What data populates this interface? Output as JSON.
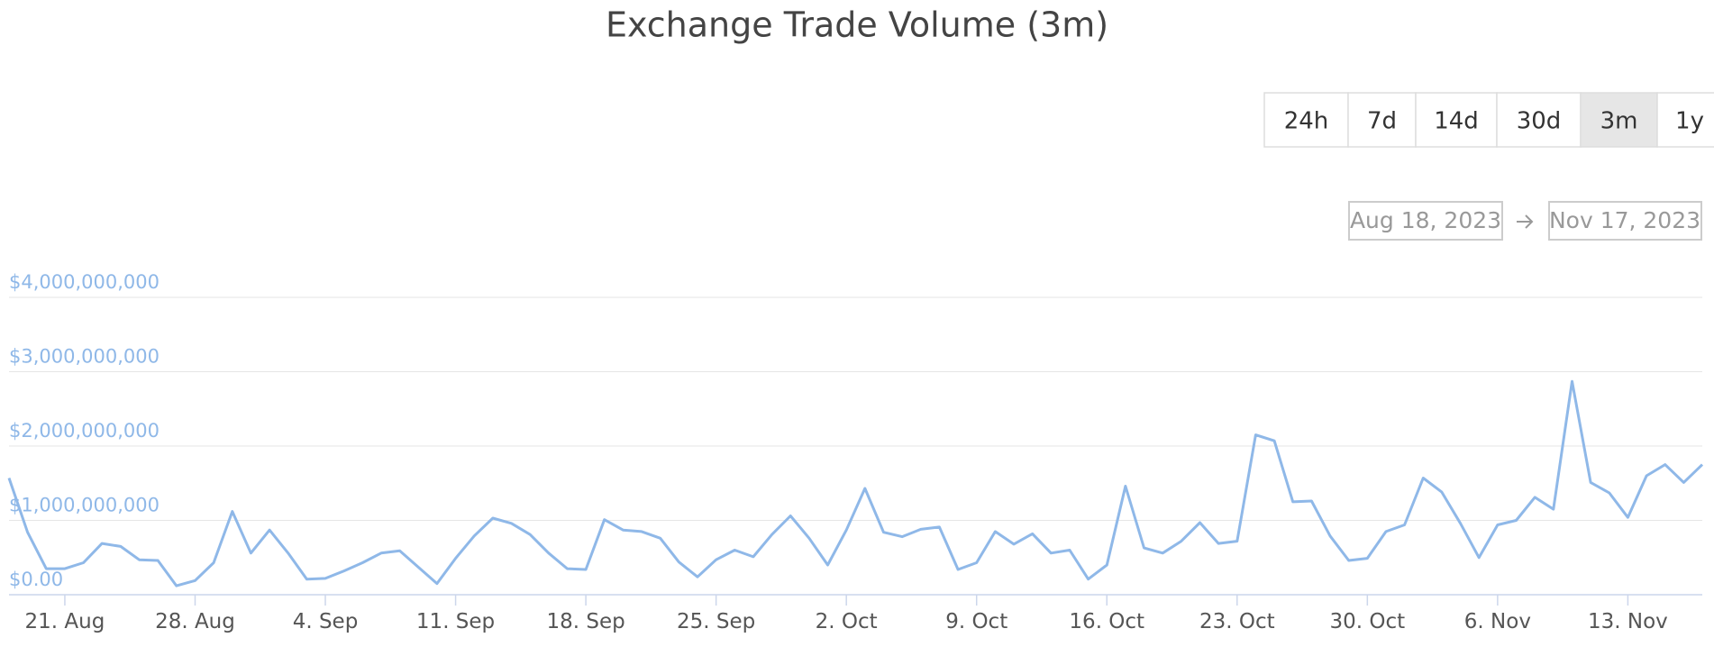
{
  "chart_data": {
    "type": "line",
    "title": "Exchange Trade Volume (3m)",
    "range_buttons": [
      {
        "label": "24h",
        "selected": false
      },
      {
        "label": "7d",
        "selected": false
      },
      {
        "label": "14d",
        "selected": false
      },
      {
        "label": "30d",
        "selected": false
      },
      {
        "label": "3m",
        "selected": true
      },
      {
        "label": "1y",
        "selected": false
      }
    ],
    "date_range": {
      "start": "Aug 18, 2023",
      "end": "Nov 17, 2023"
    },
    "color": "#8fb8e8",
    "x": [
      "2023-08-18",
      "2023-08-19",
      "2023-08-20",
      "2023-08-21",
      "2023-08-22",
      "2023-08-23",
      "2023-08-24",
      "2023-08-25",
      "2023-08-26",
      "2023-08-27",
      "2023-08-28",
      "2023-08-29",
      "2023-08-30",
      "2023-08-31",
      "2023-09-01",
      "2023-09-02",
      "2023-09-03",
      "2023-09-04",
      "2023-09-05",
      "2023-09-06",
      "2023-09-07",
      "2023-09-08",
      "2023-09-09",
      "2023-09-10",
      "2023-09-11",
      "2023-09-12",
      "2023-09-13",
      "2023-09-14",
      "2023-09-15",
      "2023-09-16",
      "2023-09-17",
      "2023-09-18",
      "2023-09-19",
      "2023-09-20",
      "2023-09-21",
      "2023-09-22",
      "2023-09-23",
      "2023-09-24",
      "2023-09-25",
      "2023-09-26",
      "2023-09-27",
      "2023-09-28",
      "2023-09-29",
      "2023-09-30",
      "2023-10-01",
      "2023-10-02",
      "2023-10-03",
      "2023-10-04",
      "2023-10-05",
      "2023-10-06",
      "2023-10-07",
      "2023-10-08",
      "2023-10-09",
      "2023-10-10",
      "2023-10-11",
      "2023-10-12",
      "2023-10-13",
      "2023-10-14",
      "2023-10-15",
      "2023-10-16",
      "2023-10-17",
      "2023-10-18",
      "2023-10-19",
      "2023-10-20",
      "2023-10-21",
      "2023-10-22",
      "2023-10-23",
      "2023-10-24",
      "2023-10-25",
      "2023-10-26",
      "2023-10-27",
      "2023-10-28",
      "2023-10-29",
      "2023-10-30",
      "2023-10-31",
      "2023-11-01",
      "2023-11-02",
      "2023-11-03",
      "2023-11-04",
      "2023-11-05",
      "2023-11-06",
      "2023-11-07",
      "2023-11-08",
      "2023-11-09",
      "2023-11-10",
      "2023-11-11",
      "2023-11-12",
      "2023-11-13",
      "2023-11-14",
      "2023-11-15",
      "2023-11-16",
      "2023-11-17"
    ],
    "values": [
      1570000000,
      840000000,
      350000000,
      350000000,
      430000000,
      690000000,
      650000000,
      470000000,
      460000000,
      120000000,
      190000000,
      430000000,
      1120000000,
      560000000,
      870000000,
      560000000,
      210000000,
      220000000,
      320000000,
      430000000,
      560000000,
      590000000,
      370000000,
      150000000,
      490000000,
      790000000,
      1030000000,
      960000000,
      810000000,
      560000000,
      350000000,
      340000000,
      1010000000,
      870000000,
      850000000,
      760000000,
      440000000,
      240000000,
      470000000,
      600000000,
      510000000,
      810000000,
      1060000000,
      760000000,
      400000000,
      870000000,
      1430000000,
      840000000,
      780000000,
      880000000,
      910000000,
      340000000,
      430000000,
      850000000,
      680000000,
      820000000,
      560000000,
      600000000,
      210000000,
      400000000,
      1460000000,
      630000000,
      560000000,
      720000000,
      970000000,
      690000000,
      720000000,
      2150000000,
      2070000000,
      1250000000,
      1260000000,
      790000000,
      460000000,
      490000000,
      850000000,
      940000000,
      1570000000,
      1380000000,
      960000000,
      500000000,
      940000000,
      1000000000,
      1310000000,
      1150000000,
      2870000000,
      1510000000,
      1370000000,
      1040000000,
      1600000000,
      1750000000,
      1510000000,
      1750000000
    ],
    "xlim": [
      "2023-08-18",
      "2023-11-17"
    ],
    "xticks": [
      {
        "value": "2023-08-21",
        "label": "21. Aug"
      },
      {
        "value": "2023-08-28",
        "label": "28. Aug"
      },
      {
        "value": "2023-09-04",
        "label": "4. Sep"
      },
      {
        "value": "2023-09-11",
        "label": "11. Sep"
      },
      {
        "value": "2023-09-18",
        "label": "18. Sep"
      },
      {
        "value": "2023-09-25",
        "label": "25. Sep"
      },
      {
        "value": "2023-10-02",
        "label": "2. Oct"
      },
      {
        "value": "2023-10-09",
        "label": "9. Oct"
      },
      {
        "value": "2023-10-16",
        "label": "16. Oct"
      },
      {
        "value": "2023-10-23",
        "label": "23. Oct"
      },
      {
        "value": "2023-10-30",
        "label": "30. Oct"
      },
      {
        "value": "2023-11-06",
        "label": "6. Nov"
      },
      {
        "value": "2023-11-13",
        "label": "13. Nov"
      }
    ],
    "ylim": [
      0,
      4000000000
    ],
    "yticks": [
      {
        "value": 0,
        "label": "$0.00"
      },
      {
        "value": 1000000000,
        "label": "$1,000,000,000"
      },
      {
        "value": 2000000000,
        "label": "$2,000,000,000"
      },
      {
        "value": 3000000000,
        "label": "$3,000,000,000"
      },
      {
        "value": 4000000000,
        "label": "$4,000,000,000"
      }
    ],
    "grid": true
  }
}
